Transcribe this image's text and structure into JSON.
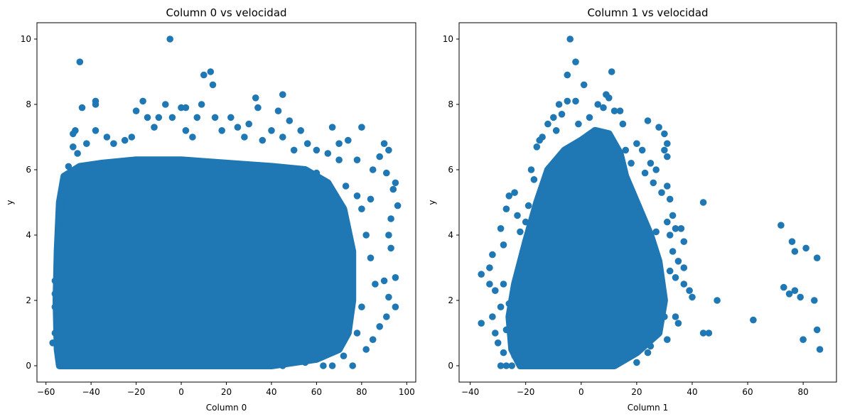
{
  "chart_data": [
    {
      "type": "scatter",
      "title": "Column 0 vs velocidad",
      "xlabel": "Column 0",
      "ylabel": "y",
      "xlim": [
        -64,
        104
      ],
      "ylim": [
        -0.5,
        10.5
      ],
      "xticks": [
        -60,
        -40,
        -20,
        0,
        20,
        40,
        60,
        80,
        100
      ],
      "yticks": [
        0,
        2,
        4,
        6,
        8,
        10
      ],
      "color": "#1f77b4",
      "grid": false,
      "dense_region_outline": [
        [
          -54,
          0
        ],
        [
          -55,
          0.5
        ],
        [
          -55.5,
          2
        ],
        [
          -55,
          3.5
        ],
        [
          -54,
          5
        ],
        [
          -52,
          5.8
        ],
        [
          -45,
          6.1
        ],
        [
          -35,
          6.2
        ],
        [
          -20,
          6.3
        ],
        [
          0,
          6.3
        ],
        [
          20,
          6.2
        ],
        [
          40,
          6.1
        ],
        [
          55,
          6.0
        ],
        [
          65,
          5.6
        ],
        [
          72,
          4.8
        ],
        [
          76,
          3.5
        ],
        [
          76,
          2
        ],
        [
          74,
          1
        ],
        [
          70,
          0.5
        ],
        [
          60,
          0.2
        ],
        [
          40,
          0
        ],
        [
          0,
          0
        ]
      ],
      "points": [
        [
          -5,
          10
        ],
        [
          -45,
          9.3
        ],
        [
          10,
          8.9
        ],
        [
          13,
          9.0
        ],
        [
          14,
          8.6
        ],
        [
          45,
          8.3
        ],
        [
          33,
          8.2
        ],
        [
          -38,
          8.1
        ],
        [
          -38,
          8.0
        ],
        [
          -44,
          7.9
        ],
        [
          -17,
          8.1
        ],
        [
          -7,
          8.0
        ],
        [
          9,
          8.0
        ],
        [
          34,
          7.9
        ],
        [
          0,
          7.9
        ],
        [
          2,
          7.9
        ],
        [
          43,
          7.8
        ],
        [
          -20,
          7.8
        ],
        [
          -47,
          7.2
        ],
        [
          -48,
          7.1
        ],
        [
          -48,
          6.7
        ],
        [
          -38,
          7.2
        ],
        [
          -15,
          7.6
        ],
        [
          -10,
          7.6
        ],
        [
          -4,
          7.6
        ],
        [
          7,
          7.6
        ],
        [
          15,
          7.6
        ],
        [
          22,
          7.6
        ],
        [
          30,
          7.4
        ],
        [
          40,
          7.2
        ],
        [
          48,
          7.5
        ],
        [
          53,
          7.2
        ],
        [
          67,
          7.3
        ],
        [
          80,
          7.3
        ],
        [
          90,
          6.8
        ],
        [
          92,
          6.6
        ],
        [
          88,
          6.4
        ],
        [
          85,
          6.0
        ],
        [
          91,
          5.9
        ],
        [
          95,
          5.6
        ],
        [
          94,
          5.4
        ],
        [
          96,
          4.9
        ],
        [
          93,
          4.5
        ],
        [
          92,
          4.0
        ],
        [
          93,
          3.6
        ],
        [
          95,
          2.7
        ],
        [
          90,
          2.6
        ],
        [
          92,
          2.1
        ],
        [
          91,
          1.5
        ],
        [
          95,
          1.8
        ],
        [
          88,
          1.2
        ],
        [
          85,
          0.8
        ],
        [
          82,
          0.5
        ],
        [
          76,
          0
        ],
        [
          67,
          0
        ],
        [
          63,
          0
        ],
        [
          60,
          6.6
        ],
        [
          65,
          6.5
        ],
        [
          70,
          6.8
        ],
        [
          74,
          6.9
        ],
        [
          78,
          6.3
        ],
        [
          84,
          5.1
        ],
        [
          -56,
          2.2
        ],
        [
          -56,
          2.6
        ],
        [
          -57,
          0.7
        ],
        [
          -56,
          1.0
        ],
        [
          -56,
          1.8
        ],
        [
          -54,
          4.1
        ],
        [
          -55,
          3.5
        ],
        [
          -53,
          5.2
        ],
        [
          -50,
          5.8
        ],
        [
          -50,
          6.1
        ],
        [
          -46,
          6.5
        ],
        [
          -42,
          6.8
        ],
        [
          -33,
          7.0
        ],
        [
          -30,
          6.8
        ],
        [
          -25,
          6.9
        ],
        [
          -22,
          7.0
        ],
        [
          -12,
          7.3
        ],
        [
          2,
          7.2
        ],
        [
          5,
          7.0
        ],
        [
          18,
          7.2
        ],
        [
          25,
          7.3
        ],
        [
          28,
          7.0
        ],
        [
          36,
          6.9
        ],
        [
          45,
          7.0
        ],
        [
          50,
          6.6
        ],
        [
          56,
          6.8
        ],
        [
          60,
          5.9
        ],
        [
          70,
          6.3
        ],
        [
          73,
          5.5
        ],
        [
          78,
          5.2
        ],
        [
          80,
          4.8
        ],
        [
          82,
          4.0
        ],
        [
          84,
          3.3
        ],
        [
          86,
          2.5
        ],
        [
          80,
          1.8
        ],
        [
          78,
          1.0
        ],
        [
          72,
          0.3
        ],
        [
          55,
          0.1
        ],
        [
          45,
          0.0
        ],
        [
          30,
          0.0
        ]
      ]
    },
    {
      "type": "scatter",
      "title": "Column 1 vs velocidad",
      "xlabel": "Column 1",
      "ylabel": "y",
      "xlim": [
        -44,
        92
      ],
      "ylim": [
        -0.5,
        10.5
      ],
      "xticks": [
        -40,
        -20,
        0,
        20,
        40,
        60,
        80
      ],
      "yticks": [
        0,
        2,
        4,
        6,
        8,
        10
      ],
      "color": "#1f77b4",
      "grid": false,
      "dense_region_outline": [
        [
          -22,
          0
        ],
        [
          -25,
          0.5
        ],
        [
          -26,
          1.5
        ],
        [
          -24,
          2.5
        ],
        [
          -20,
          3.8
        ],
        [
          -16,
          5.0
        ],
        [
          -12,
          6.0
        ],
        [
          -6,
          6.6
        ],
        [
          0,
          6.9
        ],
        [
          5,
          7.2
        ],
        [
          10,
          7.1
        ],
        [
          14,
          6.5
        ],
        [
          16,
          5.8
        ],
        [
          20,
          5.0
        ],
        [
          25,
          4.0
        ],
        [
          28,
          3.2
        ],
        [
          30,
          2.0
        ],
        [
          28,
          1.0
        ],
        [
          20,
          0.4
        ],
        [
          12,
          0
        ],
        [
          0,
          0
        ]
      ],
      "points": [
        [
          -4,
          10
        ],
        [
          -2,
          9.3
        ],
        [
          11,
          9.0
        ],
        [
          -5,
          8.9
        ],
        [
          1,
          8.6
        ],
        [
          9,
          8.3
        ],
        [
          10,
          8.2
        ],
        [
          -2,
          8.1
        ],
        [
          -5,
          8.1
        ],
        [
          6,
          8.0
        ],
        [
          -8,
          8.0
        ],
        [
          14,
          7.8
        ],
        [
          -10,
          7.6
        ],
        [
          -12,
          7.4
        ],
        [
          -14,
          7.0
        ],
        [
          -15,
          6.9
        ],
        [
          -16,
          6.7
        ],
        [
          24,
          7.5
        ],
        [
          28,
          7.3
        ],
        [
          30,
          7.1
        ],
        [
          31,
          6.8
        ],
        [
          30,
          6.6
        ],
        [
          31,
          6.4
        ],
        [
          20,
          6.8
        ],
        [
          22,
          6.6
        ],
        [
          25,
          6.2
        ],
        [
          27,
          6.0
        ],
        [
          26,
          5.6
        ],
        [
          29,
          5.3
        ],
        [
          31,
          5.5
        ],
        [
          32,
          5.1
        ],
        [
          33,
          4.6
        ],
        [
          31,
          4.4
        ],
        [
          32,
          4.0
        ],
        [
          34,
          4.2
        ],
        [
          36,
          4.2
        ],
        [
          37,
          3.8
        ],
        [
          33,
          3.5
        ],
        [
          35,
          3.2
        ],
        [
          37,
          3.0
        ],
        [
          34,
          2.7
        ],
        [
          37,
          2.5
        ],
        [
          39,
          2.3
        ],
        [
          40,
          2.1
        ],
        [
          44,
          5.0
        ],
        [
          44,
          1.0
        ],
        [
          46,
          1.0
        ],
        [
          49,
          2.0
        ],
        [
          62,
          1.4
        ],
        [
          72,
          4.3
        ],
        [
          76,
          3.8
        ],
        [
          77,
          3.5
        ],
        [
          81,
          3.6
        ],
        [
          85,
          3.3
        ],
        [
          73,
          2.4
        ],
        [
          75,
          2.2
        ],
        [
          77,
          2.3
        ],
        [
          79,
          2.1
        ],
        [
          84,
          2.0
        ],
        [
          85,
          1.1
        ],
        [
          80,
          0.8
        ],
        [
          86,
          0.5
        ],
        [
          31,
          0.8
        ],
        [
          30,
          1.5
        ],
        [
          28,
          1.1
        ],
        [
          25,
          0.6
        ],
        [
          24,
          0.4
        ],
        [
          20,
          0.1
        ],
        [
          17,
          0.9
        ],
        [
          13,
          0.6
        ],
        [
          -36,
          2.8
        ],
        [
          -36,
          1.3
        ],
        [
          -33,
          3.0
        ],
        [
          -32,
          3.4
        ],
        [
          -32,
          1.5
        ],
        [
          -31,
          1.0
        ],
        [
          -30,
          0.7
        ],
        [
          -33,
          2.5
        ],
        [
          -31,
          2.3
        ],
        [
          -29,
          4.2
        ],
        [
          -27,
          4.8
        ],
        [
          -26,
          5.2
        ],
        [
          -24,
          5.3
        ],
        [
          -28,
          3.7
        ],
        [
          -28,
          2.5
        ],
        [
          -29,
          1.8
        ],
        [
          -28,
          0.4
        ],
        [
          -29,
          0
        ],
        [
          -27,
          0
        ],
        [
          -25,
          0
        ],
        [
          -23,
          4.6
        ],
        [
          -22,
          4.1
        ],
        [
          -19,
          4.9
        ],
        [
          -18,
          6.0
        ],
        [
          -17,
          5.7
        ],
        [
          -20,
          4.4
        ],
        [
          -21,
          3.5
        ],
        [
          -24,
          2.2
        ],
        [
          -26,
          1.9
        ],
        [
          -27,
          1.1
        ],
        [
          -24,
          0.3
        ],
        [
          22,
          0.8
        ],
        [
          26,
          1.9
        ],
        [
          34,
          1.5
        ],
        [
          35,
          1.3
        ],
        [
          32,
          2.9
        ],
        [
          29,
          2.3
        ],
        [
          27,
          4.1
        ],
        [
          23,
          5.9
        ],
        [
          18,
          6.2
        ],
        [
          16,
          6.6
        ],
        [
          21,
          4.7
        ],
        [
          15,
          7.4
        ],
        [
          12,
          7.8
        ],
        [
          8,
          7.9
        ],
        [
          3,
          7.6
        ],
        [
          -1,
          7.4
        ],
        [
          -7,
          7.7
        ],
        [
          -9,
          7.2
        ]
      ]
    }
  ]
}
